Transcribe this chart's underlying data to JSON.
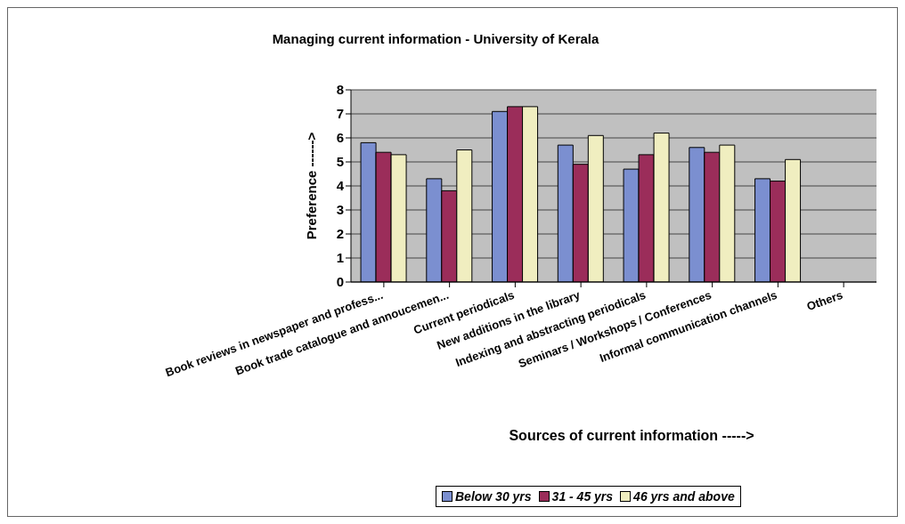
{
  "chart_data": {
    "type": "bar",
    "title": "Managing current information - University of Kerala",
    "xlabel": "Sources of current information ----->",
    "ylabel": "Preference ------>",
    "categories": [
      "Book reviews in newspaper and profess...",
      "Book trade catalogue and annoucemen...",
      "Current periodicals",
      "New additions in the library",
      "Indexing and abstracting periodicals",
      "Seminars / Workshops / Conferences",
      "Informal communication channels",
      "Others"
    ],
    "series": [
      {
        "name": "Below 30 yrs",
        "color": "#7b8fd0",
        "values": [
          5.8,
          4.3,
          7.1,
          5.7,
          4.7,
          5.6,
          4.3,
          null
        ]
      },
      {
        "name": "31 - 45 yrs",
        "color": "#9b2d5a",
        "values": [
          5.4,
          3.8,
          7.3,
          4.9,
          5.3,
          5.4,
          4.2,
          null
        ]
      },
      {
        "name": "46 yrs and above",
        "color": "#f0eec0",
        "values": [
          5.3,
          5.5,
          7.3,
          6.1,
          6.2,
          5.7,
          5.1,
          null
        ]
      }
    ],
    "ylim": [
      0,
      8
    ],
    "yticks": [
      0,
      1,
      2,
      3,
      4,
      5,
      6,
      7,
      8
    ],
    "grid": "y",
    "legend": "bottom"
  }
}
